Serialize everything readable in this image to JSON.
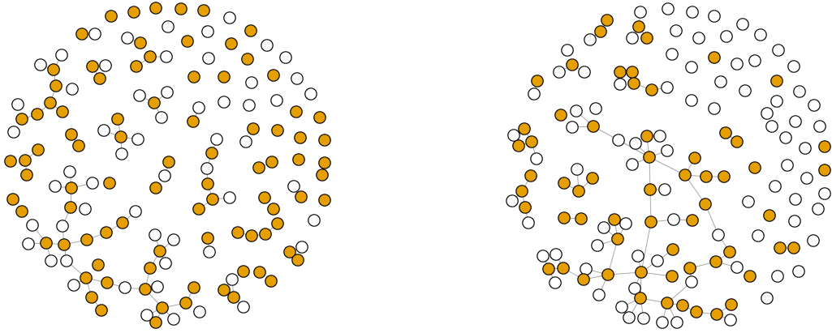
{
  "colors": {
    "node_filled": "#e69f00",
    "node_empty": "#ffffff",
    "node_stroke": "#000000",
    "edge": "#aaaaaa"
  }
}
